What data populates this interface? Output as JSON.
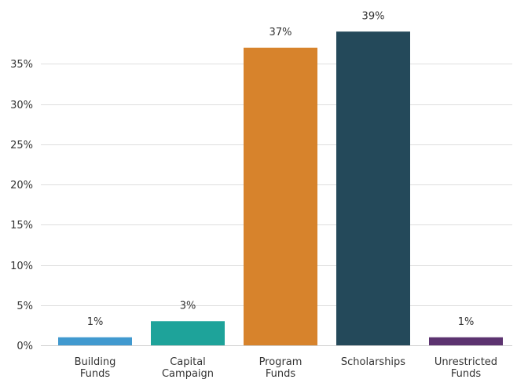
{
  "chart_data": {
    "type": "bar",
    "title": "",
    "xlabel": "",
    "ylabel": "",
    "categories": [
      [
        "Building",
        "Funds"
      ],
      [
        "Capital",
        "Campaign"
      ],
      [
        "Program",
        "Funds"
      ],
      [
        "Scholarships"
      ],
      [
        "Unrestricted",
        "Funds"
      ]
    ],
    "values": [
      1,
      3,
      37,
      39,
      1
    ],
    "data_labels": [
      "1%",
      "3%",
      "37%",
      "39%",
      "1%"
    ],
    "colors": [
      "#4199cf",
      "#1ea39a",
      "#d7832c",
      "#24495a",
      "#5c3370"
    ],
    "ylim": [
      0,
      40
    ],
    "yticks": [
      0,
      5,
      10,
      15,
      20,
      25,
      30,
      35
    ],
    "ytick_labels": [
      "0%",
      "5%",
      "10%",
      "15%",
      "20%",
      "25%",
      "30%",
      "35%"
    ],
    "grid": true,
    "legend": "none"
  }
}
